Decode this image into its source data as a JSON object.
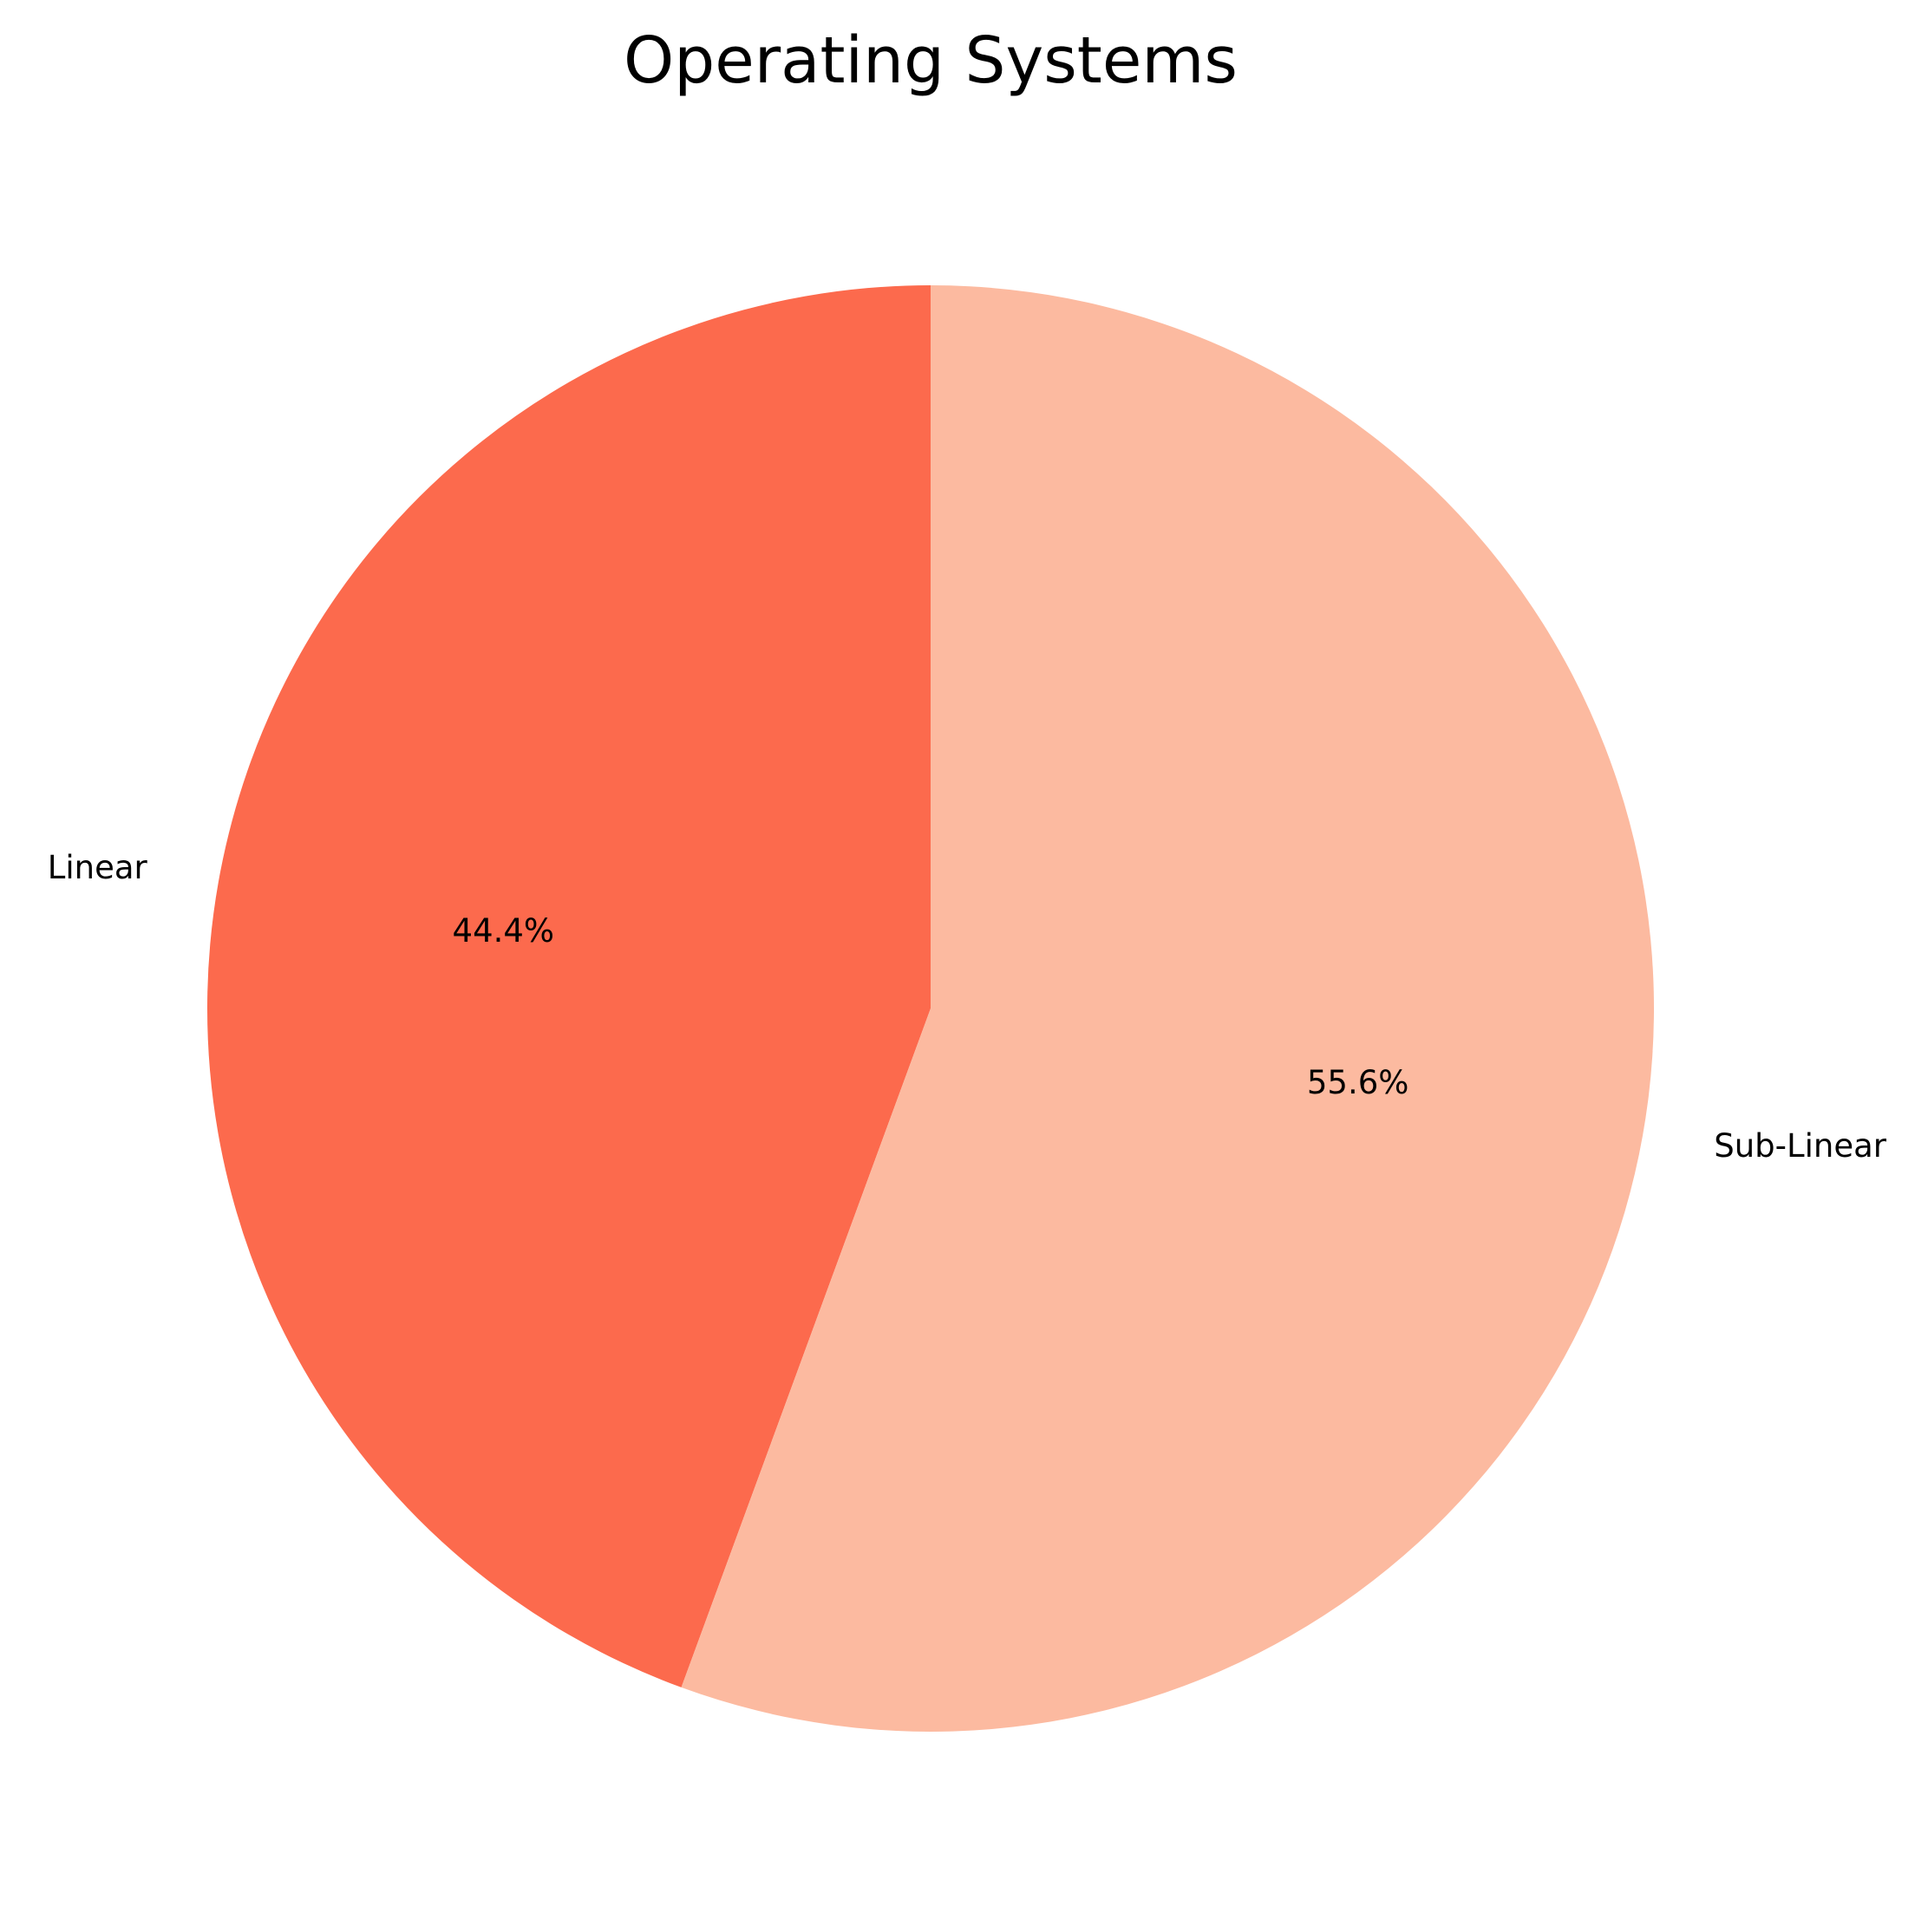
{
  "chart_data": {
    "type": "pie",
    "title": "Operating Systems",
    "start_angle_deg": 90,
    "direction": "counterclockwise",
    "slices": [
      {
        "label": "Linear",
        "value": 44.4,
        "pct_label": "44.4%",
        "color": "#fc6a4d"
      },
      {
        "label": "Sub-Linear",
        "value": 55.6,
        "pct_label": "55.6%",
        "color": "#fcbaa0"
      }
    ],
    "legend": "none"
  }
}
